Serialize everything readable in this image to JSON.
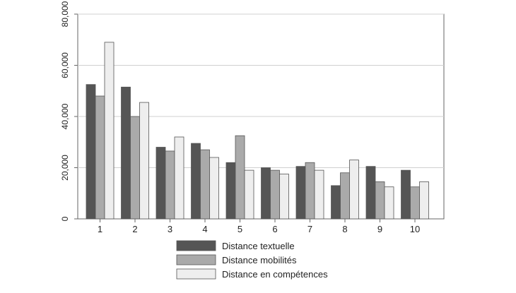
{
  "chart_data": {
    "type": "bar",
    "title": "",
    "xlabel": "",
    "ylabel": "",
    "categories": [
      "1",
      "2",
      "3",
      "4",
      "5",
      "6",
      "7",
      "8",
      "9",
      "10"
    ],
    "ylim": [
      0,
      80000
    ],
    "yticks": [
      0,
      20000,
      40000,
      60000,
      80000
    ],
    "ytick_labels": [
      "0",
      "20,000",
      "40,000",
      "60,000",
      "80,000"
    ],
    "grid": true,
    "legend_position": "bottom",
    "series": [
      {
        "name": "Distance textuelle",
        "color": "#555555",
        "values": [
          52500,
          51500,
          28000,
          29500,
          22000,
          20000,
          20500,
          13000,
          20500,
          19000
        ]
      },
      {
        "name": "Distance mobilités",
        "color": "#aaaaaa",
        "values": [
          48000,
          40000,
          26500,
          27000,
          32500,
          19000,
          22000,
          18000,
          14500,
          12500
        ]
      },
      {
        "name": "Distance en compétences",
        "color": "#eeeeee",
        "values": [
          69000,
          45500,
          32000,
          24000,
          19000,
          17500,
          19000,
          23000,
          12500,
          14500
        ]
      }
    ]
  }
}
